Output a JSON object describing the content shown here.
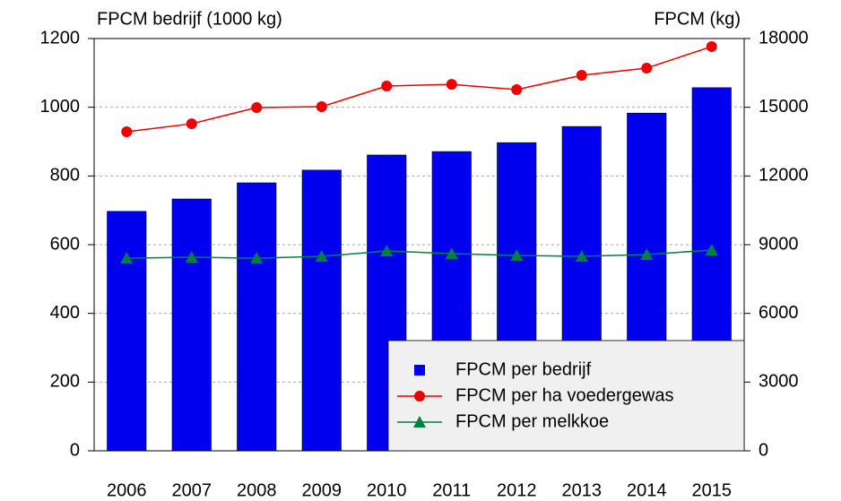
{
  "chart_data": {
    "type": "bar",
    "ylabel": "FPCM bedrijf (1000 kg)",
    "y2label": "FPCM (kg)",
    "categories": [
      "2006",
      "2007",
      "2008",
      "2009",
      "2010",
      "2011",
      "2012",
      "2013",
      "2014",
      "2015"
    ],
    "series": [
      {
        "name": "FPCM per bedrijf",
        "type": "bar",
        "color": "#0000ee",
        "marker": "square",
        "values": [
          697,
          733,
          780,
          817,
          861,
          871,
          897,
          944,
          983,
          1057
        ]
      },
      {
        "name": "FPCM per ha voedergewas",
        "type": "line",
        "axis": "y2",
        "color": "#ee0000",
        "marker": "circle",
        "values": [
          13930,
          14280,
          14985,
          15025,
          15925,
          16000,
          15770,
          16395,
          16710,
          17650
        ]
      },
      {
        "name": "FPCM per melkkoe",
        "type": "line",
        "axis": "y2",
        "color": "#008040",
        "marker": "triangle",
        "values": [
          8410,
          8450,
          8410,
          8490,
          8725,
          8610,
          8530,
          8490,
          8570,
          8765
        ]
      }
    ],
    "ylim": [
      0,
      1200
    ],
    "yticks": [
      0,
      200,
      400,
      600,
      800,
      1000,
      1200
    ],
    "y2lim": [
      0,
      18000
    ],
    "y2ticks": [
      0,
      3000,
      6000,
      9000,
      12000,
      15000,
      18000
    ],
    "grid": true,
    "legend": "lower right"
  }
}
